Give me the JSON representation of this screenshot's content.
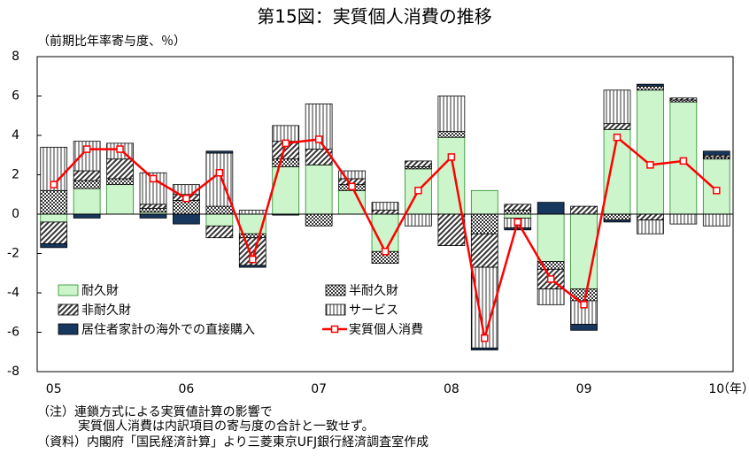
{
  "chart_data": {
    "type": "stacked-bar-line",
    "title": "第15図：実質個人消費の推移",
    "y_label": "（前期比年率寄与度、％）",
    "x_unit": "（年）",
    "categories": [
      "05",
      null,
      null,
      null,
      "06",
      null,
      null,
      null,
      "07",
      null,
      null,
      null,
      "08",
      null,
      null,
      null,
      "09",
      null,
      null,
      null,
      "10"
    ],
    "ylim": [
      -8,
      8
    ],
    "yticks": [
      -8,
      -6,
      -4,
      -2,
      0,
      2,
      4,
      6,
      8
    ],
    "series": [
      {
        "name": "耐久財",
        "kind": "bar",
        "color": "#ccf5cc",
        "pattern": "none",
        "values": [
          -0.4,
          1.3,
          1.5,
          0.1,
          0,
          -0.6,
          -1.0,
          2.4,
          2.5,
          1.2,
          -1.9,
          2.3,
          3.9,
          1.2,
          -0.2,
          -2.4,
          -3.8,
          4.3,
          6.3,
          5.7,
          2.8
        ]
      },
      {
        "name": "半耐久財",
        "kind": "bar",
        "color": "#333333",
        "pattern": "dots",
        "values": [
          1.2,
          0.4,
          0.3,
          0.2,
          0.7,
          0.4,
          -0.2,
          0.4,
          -0.6,
          0.3,
          -0.6,
          0.1,
          0.3,
          -1.0,
          0.2,
          -0.4,
          -0.6,
          -0.3,
          0.2,
          0.1,
          0.1
        ]
      },
      {
        "name": "非耐久財",
        "kind": "bar",
        "color": "#333333",
        "pattern": "hatch",
        "values": [
          -1.1,
          0.5,
          1.0,
          0.2,
          0.3,
          -0.6,
          -1.4,
          0.9,
          0.8,
          0.3,
          0.2,
          0.3,
          -1.6,
          -1.7,
          0.3,
          -1.0,
          0.4,
          0.3,
          -0.3,
          0.1,
          0.1
        ]
      },
      {
        "name": "サービス",
        "kind": "bar",
        "color": "#333333",
        "pattern": "vlines",
        "values": [
          2.2,
          1.5,
          0.8,
          1.6,
          0.5,
          2.7,
          0.2,
          0.8,
          2.3,
          0.4,
          0.4,
          -0.6,
          1.8,
          -4.1,
          -0.5,
          -0.8,
          -1.2,
          1.7,
          -0.7,
          -0.5,
          -0.6
        ]
      },
      {
        "name": "居住者家計の海外での直接購入",
        "kind": "bar",
        "color": "#17375e",
        "pattern": "none",
        "values": [
          -0.2,
          -0.2,
          0,
          -0.2,
          -0.5,
          0.1,
          -0.1,
          -0.05,
          0,
          0,
          0,
          0,
          0,
          -0.1,
          -0.1,
          0.6,
          -0.3,
          -0.1,
          0.1,
          0,
          0.2
        ]
      },
      {
        "name": "実質個人消費",
        "kind": "line",
        "color": "#ff0000",
        "pattern": "none",
        "values": [
          1.5,
          3.3,
          3.3,
          1.8,
          0.8,
          2.1,
          -2.3,
          3.6,
          3.8,
          1.4,
          -1.9,
          1.2,
          2.9,
          -6.3,
          -0.4,
          -3.3,
          -4.6,
          3.9,
          2.5,
          2.7,
          1.2
        ]
      }
    ],
    "legend": "lower-left"
  },
  "notes": [
    "（注）連鎖方式による実質値計算の影響で",
    "実質個人消費は内訳項目の寄与度の合計と一致せず。",
    "（資料）内閣府「国民経済計算」より三菱東京UFJ銀行経済調査室作成"
  ]
}
